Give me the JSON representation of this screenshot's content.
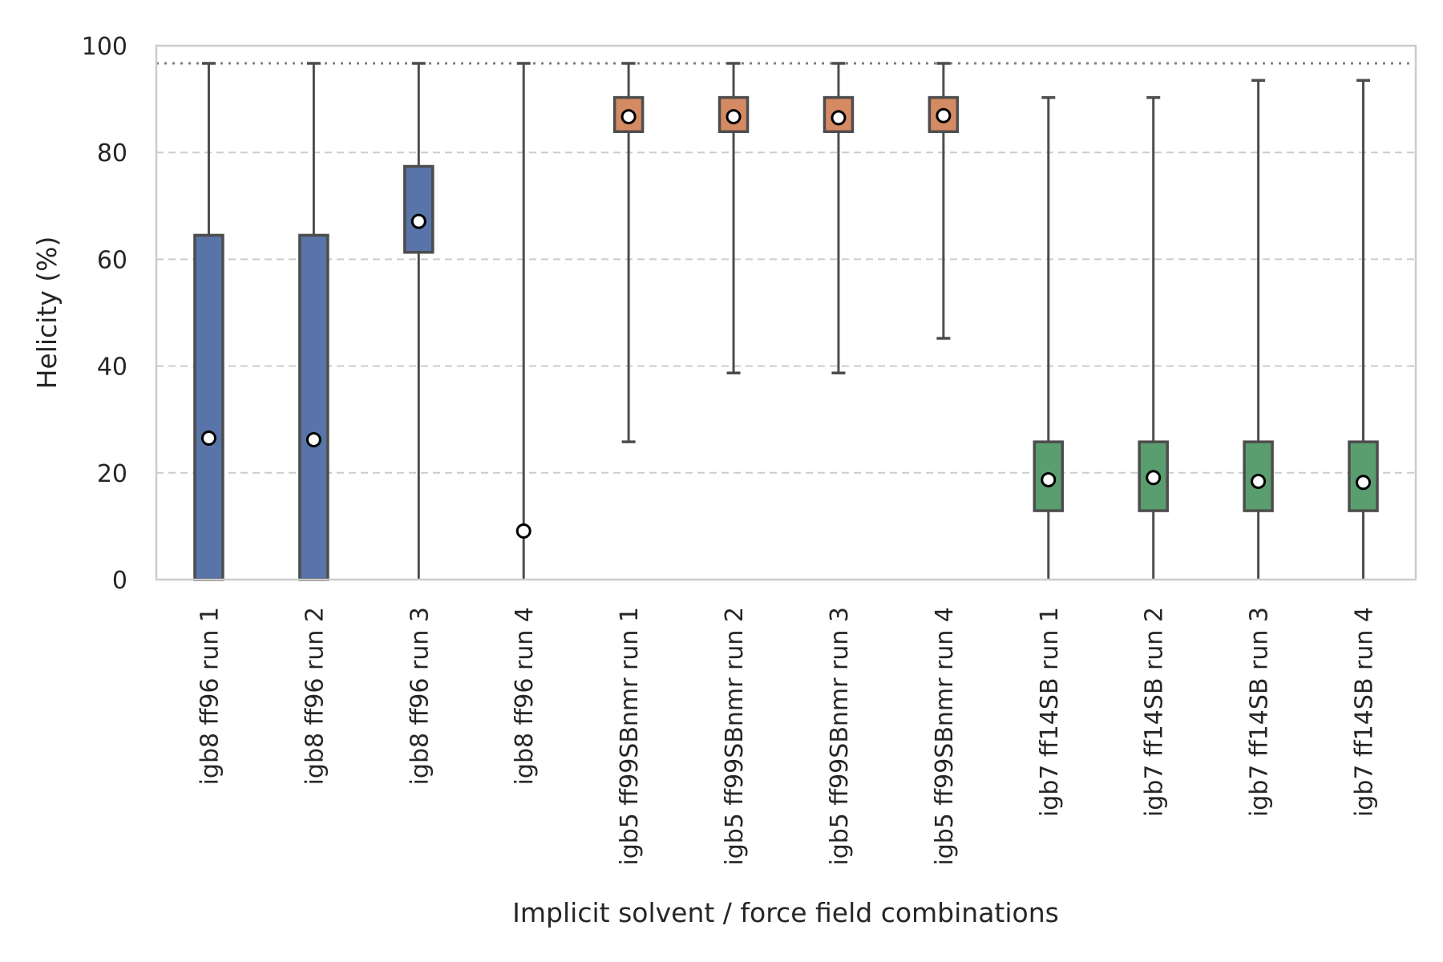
{
  "chart_data": {
    "type": "box",
    "xlabel": "Implicit solvent / force field combinations",
    "ylabel": "Helicity (%)",
    "ylim": [
      0,
      100
    ],
    "yticks": [
      0,
      20,
      40,
      60,
      80,
      100
    ],
    "grid": "horizontal dashed",
    "reference_line": {
      "y": 96.7,
      "style": "dotted"
    },
    "categories": [
      "igb8 ff96 run 1",
      "igb8 ff96 run 2",
      "igb8 ff96 run 3",
      "igb8 ff96 run 4",
      "igb5 ff99SBnmr run 1",
      "igb5 ff99SBnmr run 2",
      "igb5 ff99SBnmr run 3",
      "igb5 ff99SBnmr run 4",
      "igb7 ff14SB run 1",
      "igb7 ff14SB run 2",
      "igb7 ff14SB run 3",
      "igb7 ff14SB run 4"
    ],
    "series": [
      {
        "color": "#5874a8",
        "items": [
          {
            "whisker_low": 0,
            "q1": 0,
            "q3": 64.5,
            "whisker_high": 96.7,
            "mean": 26.5
          },
          {
            "whisker_low": 0,
            "q1": 0,
            "q3": 64.5,
            "whisker_high": 96.7,
            "mean": 26.2
          },
          {
            "whisker_low": 0,
            "q1": 61.3,
            "q3": 77.4,
            "whisker_high": 96.7,
            "mean": 67.1
          },
          {
            "whisker_low": 0,
            "q1": 0,
            "q3": 0,
            "whisker_high": 96.7,
            "mean": 9.1
          }
        ]
      },
      {
        "color": "#d48a63",
        "items": [
          {
            "whisker_low": 25.8,
            "q1": 83.9,
            "q3": 90.3,
            "whisker_high": 96.7,
            "mean": 86.7
          },
          {
            "whisker_low": 38.7,
            "q1": 83.9,
            "q3": 90.3,
            "whisker_high": 96.7,
            "mean": 86.7
          },
          {
            "whisker_low": 38.7,
            "q1": 83.9,
            "q3": 90.3,
            "whisker_high": 96.7,
            "mean": 86.5
          },
          {
            "whisker_low": 45.2,
            "q1": 83.9,
            "q3": 90.3,
            "whisker_high": 96.7,
            "mean": 86.9
          }
        ]
      },
      {
        "color": "#5a9e6f",
        "items": [
          {
            "whisker_low": 0,
            "q1": 12.9,
            "q3": 25.8,
            "whisker_high": 90.3,
            "mean": 18.7
          },
          {
            "whisker_low": 0,
            "q1": 12.9,
            "q3": 25.8,
            "whisker_high": 90.3,
            "mean": 19.1
          },
          {
            "whisker_low": 0,
            "q1": 12.9,
            "q3": 25.8,
            "whisker_high": 93.5,
            "mean": 18.4
          },
          {
            "whisker_low": 0,
            "q1": 12.9,
            "q3": 25.8,
            "whisker_high": 93.5,
            "mean": 18.2
          }
        ]
      }
    ]
  }
}
